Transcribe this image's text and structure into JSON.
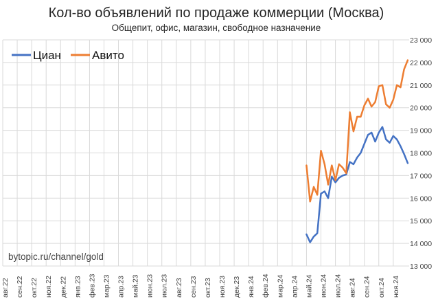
{
  "chart_data": {
    "type": "line",
    "title": "Кол-во объявлений по продаже коммерции (Москва)",
    "subtitle": "Общепит, офис, магазин, свободное назначение",
    "watermark": "bytopic.ru/channel/gold",
    "ylim": [
      13000,
      23000
    ],
    "y_ticks": [
      "13 000",
      "14 000",
      "15 000",
      "16 000",
      "17 000",
      "18 000",
      "19 000",
      "20 000",
      "21 000",
      "22 000",
      "23 000"
    ],
    "x_ticks": [
      "авг.22",
      "сен.22",
      "окт.22",
      "ноя.22",
      "дек.22",
      "янв.23",
      "фев.23",
      "мар.23",
      "апр.23",
      "май.23",
      "июн.23",
      "июл.23",
      "авг.23",
      "сен.23",
      "окт.23",
      "ноя.23",
      "дек.23",
      "янв.24",
      "фев.24",
      "мар.24",
      "апр.24",
      "май.24",
      "июн.24",
      "июл.24",
      "авг.24",
      "сен.24",
      "окт.24",
      "ноя.24"
    ],
    "x_range": [
      0,
      28.1
    ],
    "grid": true,
    "legend_position": "top-left",
    "series": [
      {
        "name": "Циан",
        "color": "#4472C4",
        "x": [
          21.0,
          21.25,
          21.5,
          21.75,
          22.0,
          22.25,
          22.5,
          22.75,
          23.0,
          23.25,
          23.5,
          23.75,
          24.0,
          24.25,
          24.5,
          24.75,
          25.0,
          25.25,
          25.5,
          25.75,
          26.0,
          26.25,
          26.5,
          26.75,
          27.0,
          27.25,
          27.5,
          27.75,
          28.0
        ],
        "values": [
          14400,
          14050,
          14300,
          14450,
          16200,
          16300,
          16000,
          16950,
          16700,
          16900,
          17000,
          17050,
          17600,
          17500,
          17800,
          18000,
          18400,
          18800,
          18900,
          18500,
          18900,
          19150,
          18600,
          18450,
          18750,
          18600,
          18300,
          17950,
          17550
        ]
      },
      {
        "name": "Авито",
        "color": "#ED7D31",
        "x": [
          21.0,
          21.25,
          21.5,
          21.75,
          22.0,
          22.25,
          22.5,
          22.75,
          23.0,
          23.25,
          23.5,
          23.75,
          24.0,
          24.25,
          24.5,
          24.75,
          25.0,
          25.25,
          25.5,
          25.75,
          26.0,
          26.25,
          26.5,
          26.75,
          27.0,
          27.25,
          27.5,
          27.75,
          28.0
        ],
        "values": [
          17450,
          15850,
          16500,
          16150,
          18100,
          17500,
          16600,
          17450,
          16800,
          17500,
          17350,
          17100,
          19800,
          18950,
          19600,
          19600,
          20100,
          20400,
          20050,
          20250,
          20950,
          21000,
          20150,
          20000,
          20350,
          21000,
          20900,
          21700,
          22100
        ]
      }
    ]
  }
}
